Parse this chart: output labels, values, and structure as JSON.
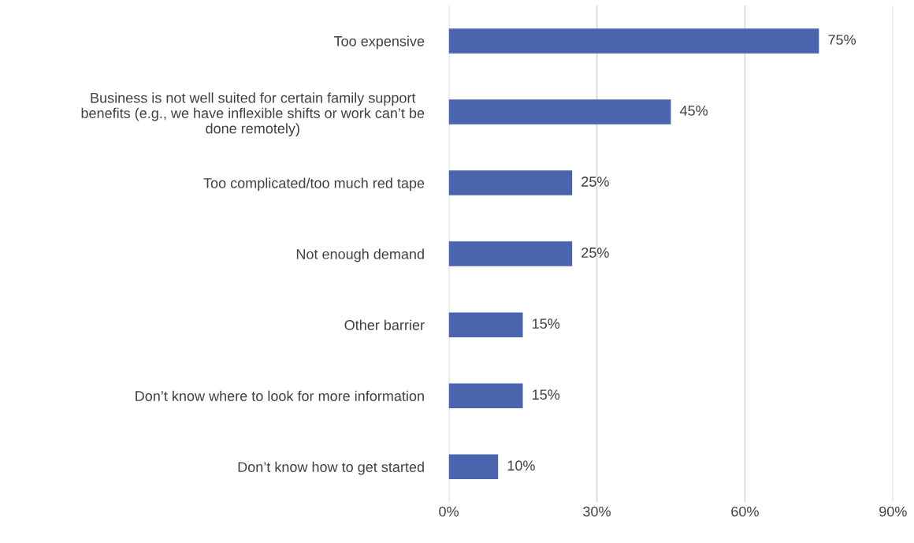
{
  "chart_data": {
    "type": "bar",
    "orientation": "horizontal",
    "categories": [
      "Too expensive",
      "Business is not well suited for certain family support\nbenefits (e.g., we have inflexible shifts or work can’t be\ndone remotely)",
      "Too complicated/too much red tape",
      "Not enough demand",
      "Other barrier",
      "Don’t know where to look for more information",
      "Don’t know how to get started"
    ],
    "values": [
      75,
      45,
      25,
      25,
      15,
      15,
      10
    ],
    "value_labels": [
      "75%",
      "45%",
      "25%",
      "25%",
      "15%",
      "15%",
      "10%"
    ],
    "color": "#4a65ad",
    "xlim": [
      0,
      90
    ],
    "xticks": [
      {
        "value": 0,
        "label": "0%"
      },
      {
        "value": 30,
        "label": "30%"
      },
      {
        "value": 60,
        "label": "60%"
      },
      {
        "value": 90,
        "label": "90%"
      }
    ],
    "grid": "x",
    "legend": false
  }
}
